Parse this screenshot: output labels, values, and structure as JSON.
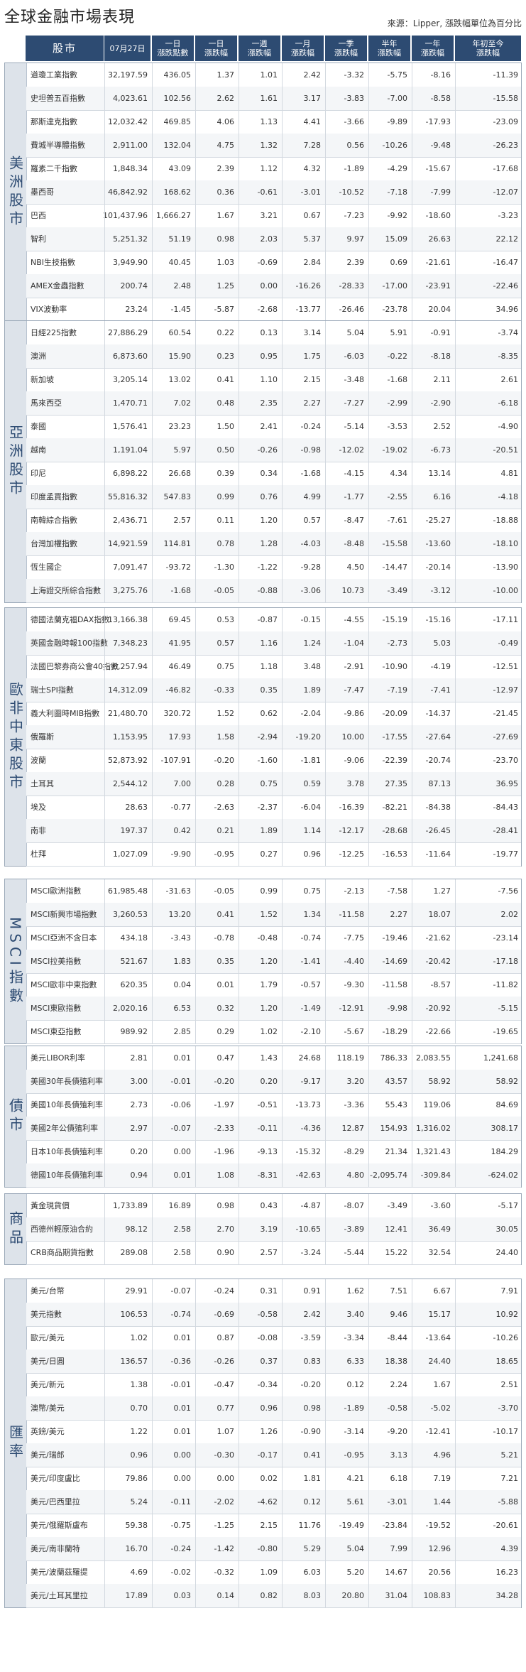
{
  "title": "全球金融市場表現",
  "source": "來源：Lipper, 漲跌幅單位為百分比",
  "header": {
    "name": "股市",
    "columns": [
      "07月27日",
      "一日\n漲跌點數",
      "一日\n漲跌幅",
      "一週\n漲跌幅",
      "一月\n漲跌幅",
      "一季\n漲跌幅",
      "半年\n漲跌幅",
      "一年\n漲跌幅",
      "年初至今\n漲跌幅"
    ]
  },
  "sections": [
    {
      "label": "美洲股市",
      "rows": [
        [
          "道瓊工業指數",
          "32,197.59",
          "436.05",
          "1.37",
          "1.01",
          "2.42",
          "-3.32",
          "-5.75",
          "-8.16",
          "-11.39"
        ],
        [
          "史坦普五百指數",
          "4,023.61",
          "102.56",
          "2.62",
          "1.61",
          "3.17",
          "-3.83",
          "-7.00",
          "-8.58",
          "-15.58"
        ],
        [
          "那斯達克指數",
          "12,032.42",
          "469.85",
          "4.06",
          "1.13",
          "4.41",
          "-3.66",
          "-9.89",
          "-17.93",
          "-23.09"
        ],
        [
          "費城半導體指數",
          "2,911.00",
          "132.04",
          "4.75",
          "1.32",
          "7.28",
          "0.56",
          "-10.26",
          "-9.48",
          "-26.23"
        ],
        [
          "羅素二千指數",
          "1,848.34",
          "43.09",
          "2.39",
          "1.12",
          "4.32",
          "-1.89",
          "-4.29",
          "-15.67",
          "-17.68"
        ],
        [
          "墨西哥",
          "46,842.92",
          "168.62",
          "0.36",
          "-0.61",
          "-3.01",
          "-10.52",
          "-7.18",
          "-7.99",
          "-12.07"
        ],
        [
          "巴西",
          "101,437.96",
          "1,666.27",
          "1.67",
          "3.21",
          "0.67",
          "-7.23",
          "-9.92",
          "-18.60",
          "-3.23"
        ],
        [
          "智利",
          "5,251.32",
          "51.19",
          "0.98",
          "2.03",
          "5.37",
          "9.97",
          "15.09",
          "26.63",
          "22.12"
        ],
        [
          "NBI生技指數",
          "3,949.90",
          "40.45",
          "1.03",
          "-0.69",
          "2.84",
          "2.39",
          "0.69",
          "-21.61",
          "-16.47"
        ],
        [
          "AMEX金蟲指數",
          "200.74",
          "2.48",
          "1.25",
          "0.00",
          "-16.26",
          "-28.33",
          "-17.00",
          "-23.91",
          "-22.46"
        ],
        [
          "VIX波動率",
          "23.24",
          "-1.45",
          "-5.87",
          "-2.68",
          "-13.77",
          "-26.46",
          "-23.78",
          "20.04",
          "34.96"
        ]
      ]
    },
    {
      "label": "亞洲股市",
      "rows": [
        [
          "日經225指數",
          "27,886.29",
          "60.54",
          "0.22",
          "0.13",
          "3.14",
          "5.04",
          "5.91",
          "-0.91",
          "-3.74"
        ],
        [
          "澳洲",
          "6,873.60",
          "15.90",
          "0.23",
          "0.95",
          "1.75",
          "-6.03",
          "-0.22",
          "-8.18",
          "-8.35"
        ],
        [
          "新加坡",
          "3,205.14",
          "13.02",
          "0.41",
          "1.10",
          "2.15",
          "-3.48",
          "-1.68",
          "2.11",
          "2.61"
        ],
        [
          "馬來西亞",
          "1,470.71",
          "7.02",
          "0.48",
          "2.35",
          "2.27",
          "-7.27",
          "-2.99",
          "-2.90",
          "-6.18"
        ],
        [
          "泰國",
          "1,576.41",
          "23.23",
          "1.50",
          "2.41",
          "-0.24",
          "-5.14",
          "-3.53",
          "2.52",
          "-4.90"
        ],
        [
          "越南",
          "1,191.04",
          "5.97",
          "0.50",
          "-0.26",
          "-0.98",
          "-12.02",
          "-19.02",
          "-6.73",
          "-20.51"
        ],
        [
          "印尼",
          "6,898.22",
          "26.68",
          "0.39",
          "0.34",
          "-1.68",
          "-4.15",
          "4.34",
          "13.14",
          "4.81"
        ],
        [
          "印度孟買指數",
          "55,816.32",
          "547.83",
          "0.99",
          "0.76",
          "4.99",
          "-1.77",
          "-2.55",
          "6.16",
          "-4.18"
        ],
        [
          "南韓綜合指數",
          "2,436.71",
          "2.57",
          "0.11",
          "1.20",
          "0.57",
          "-8.47",
          "-7.61",
          "-25.27",
          "-18.88"
        ],
        [
          "台灣加權指數",
          "14,921.59",
          "114.81",
          "0.78",
          "1.28",
          "-4.03",
          "-8.48",
          "-15.58",
          "-13.60",
          "-18.10"
        ],
        [
          "恆生國企",
          "7,091.47",
          "-93.72",
          "-1.30",
          "-1.22",
          "-9.28",
          "4.50",
          "-14.47",
          "-20.14",
          "-13.90"
        ],
        [
          "上海證交所綜合指數",
          "3,275.76",
          "-1.68",
          "-0.05",
          "-0.88",
          "-3.06",
          "10.73",
          "-3.49",
          "-3.12",
          "-10.00"
        ]
      ]
    },
    {
      "label": "歐非中東股市",
      "rows": [
        [
          "德國法蘭克福DAX指數",
          "13,166.38",
          "69.45",
          "0.53",
          "-0.87",
          "-0.15",
          "-4.55",
          "-15.19",
          "-15.16",
          "-17.11"
        ],
        [
          "英國金融時報100指數",
          "7,348.23",
          "41.95",
          "0.57",
          "1.16",
          "1.24",
          "-1.04",
          "-2.73",
          "5.03",
          "-0.49"
        ],
        [
          "法國巴黎券商公會40指數",
          "6,257.94",
          "46.49",
          "0.75",
          "1.18",
          "3.48",
          "-2.91",
          "-10.90",
          "-4.19",
          "-12.51"
        ],
        [
          "瑞士SPI指數",
          "14,312.09",
          "-46.82",
          "-0.33",
          "0.35",
          "1.89",
          "-7.47",
          "-7.19",
          "-7.41",
          "-12.97"
        ],
        [
          "義大利圖時MIB指數",
          "21,480.70",
          "320.72",
          "1.52",
          "0.62",
          "-2.04",
          "-9.86",
          "-20.09",
          "-14.37",
          "-21.45"
        ],
        [
          "俄羅斯",
          "1,153.95",
          "17.93",
          "1.58",
          "-2.94",
          "-19.20",
          "10.00",
          "-17.55",
          "-27.64",
          "-27.69"
        ],
        [
          "波蘭",
          "52,873.92",
          "-107.91",
          "-0.20",
          "-1.60",
          "-1.81",
          "-9.06",
          "-22.39",
          "-20.74",
          "-23.70"
        ],
        [
          "土耳其",
          "2,544.12",
          "7.00",
          "0.28",
          "0.75",
          "0.59",
          "3.78",
          "27.35",
          "87.13",
          "36.95"
        ],
        [
          "埃及",
          "28.63",
          "-0.77",
          "-2.63",
          "-2.37",
          "-6.04",
          "-16.39",
          "-82.21",
          "-84.38",
          "-84.43"
        ],
        [
          "南非",
          "197.37",
          "0.42",
          "0.21",
          "1.89",
          "1.14",
          "-12.17",
          "-28.68",
          "-26.45",
          "-28.41"
        ],
        [
          "杜拜",
          "1,027.09",
          "-9.90",
          "-0.95",
          "0.27",
          "0.96",
          "-12.25",
          "-16.53",
          "-11.64",
          "-19.77"
        ]
      ]
    },
    {
      "label": "MSCI指數",
      "rows": [
        [
          "MSCI歐洲指數",
          "61,985.48",
          "-31.63",
          "-0.05",
          "0.99",
          "0.75",
          "-2.13",
          "-7.58",
          "1.27",
          "-7.56"
        ],
        [
          "MSCI新興市場指數",
          "3,260.53",
          "13.20",
          "0.41",
          "1.52",
          "1.34",
          "-11.58",
          "2.27",
          "18.07",
          "2.02"
        ],
        [
          "MSCI亞洲不含日本",
          "434.18",
          "-3.43",
          "-0.78",
          "-0.48",
          "-0.74",
          "-7.75",
          "-19.46",
          "-21.62",
          "-23.14"
        ],
        [
          "MSCI拉美指數",
          "521.67",
          "1.83",
          "0.35",
          "1.20",
          "-1.41",
          "-4.40",
          "-14.69",
          "-20.42",
          "-17.18"
        ],
        [
          "MSCI歐非中東指數",
          "620.35",
          "0.04",
          "0.01",
          "1.79",
          "-0.57",
          "-9.30",
          "-11.58",
          "-8.57",
          "-11.82"
        ],
        [
          "MSCI東歐指數",
          "2,020.16",
          "6.53",
          "0.32",
          "1.20",
          "-1.49",
          "-12.91",
          "-9.98",
          "-20.92",
          "-5.15"
        ],
        [
          "MSCI東亞指數",
          "989.92",
          "2.85",
          "0.29",
          "1.02",
          "-2.10",
          "-5.67",
          "-18.29",
          "-22.66",
          "-19.65"
        ]
      ]
    },
    {
      "label": "債市",
      "rows": [
        [
          "美元LIBOR利率",
          "2.81",
          "0.01",
          "0.47",
          "1.43",
          "24.68",
          "118.19",
          "786.33",
          "2,083.55",
          "1,241.68"
        ],
        [
          "美國30年長債殖利率",
          "3.00",
          "-0.01",
          "-0.20",
          "0.20",
          "-9.17",
          "3.20",
          "43.57",
          "58.92",
          "58.92"
        ],
        [
          "美國10年長債殖利率",
          "2.73",
          "-0.06",
          "-1.97",
          "-0.51",
          "-13.73",
          "-3.36",
          "55.43",
          "119.06",
          "84.69"
        ],
        [
          "美國2年公債殖利率",
          "2.97",
          "-0.07",
          "-2.33",
          "-0.11",
          "-4.36",
          "12.87",
          "154.93",
          "1,316.02",
          "308.17"
        ],
        [
          "日本10年長債殖利率",
          "0.20",
          "0.00",
          "-1.96",
          "-9.13",
          "-15.32",
          "-8.29",
          "21.34",
          "1,321.43",
          "184.29"
        ],
        [
          "德國10年長債殖利率",
          "0.94",
          "0.01",
          "1.08",
          "-8.31",
          "-42.63",
          "4.80",
          "-2,095.74",
          "-309.84",
          "-624.02"
        ]
      ]
    },
    {
      "label": "商品",
      "rows": [
        [
          "黃金現貨價",
          "1,733.89",
          "16.89",
          "0.98",
          "0.43",
          "-4.87",
          "-8.07",
          "-3.49",
          "-3.60",
          "-5.17"
        ],
        [
          "西德州輕原油合約",
          "98.12",
          "2.58",
          "2.70",
          "3.19",
          "-10.65",
          "-3.89",
          "12.41",
          "36.49",
          "30.05"
        ],
        [
          "CRB商品期貨指數",
          "289.08",
          "2.58",
          "0.90",
          "2.57",
          "-3.24",
          "-5.44",
          "15.22",
          "32.54",
          "24.40"
        ]
      ]
    },
    {
      "label": "匯率",
      "rows": [
        [
          "美元/台幣",
          "29.91",
          "-0.07",
          "-0.24",
          "0.31",
          "0.91",
          "1.62",
          "7.51",
          "6.67",
          "7.91"
        ],
        [
          "美元指數",
          "106.53",
          "-0.74",
          "-0.69",
          "-0.58",
          "2.42",
          "3.40",
          "9.46",
          "15.17",
          "10.92"
        ],
        [
          "歐元/美元",
          "1.02",
          "0.01",
          "0.87",
          "-0.08",
          "-3.59",
          "-3.34",
          "-8.44",
          "-13.64",
          "-10.26"
        ],
        [
          "美元/日圓",
          "136.57",
          "-0.36",
          "-0.26",
          "0.37",
          "0.83",
          "6.33",
          "18.38",
          "24.40",
          "18.65"
        ],
        [
          "美元/新元",
          "1.38",
          "-0.01",
          "-0.47",
          "-0.34",
          "-0.20",
          "0.12",
          "2.24",
          "1.67",
          "2.51"
        ],
        [
          "澳幣/美元",
          "0.70",
          "0.01",
          "0.77",
          "0.96",
          "0.98",
          "-1.89",
          "-0.58",
          "-5.02",
          "-3.70"
        ],
        [
          "英鎊/美元",
          "1.22",
          "0.01",
          "1.07",
          "1.26",
          "-0.90",
          "-3.14",
          "-9.20",
          "-12.41",
          "-10.17"
        ],
        [
          "美元/瑞郎",
          "0.96",
          "0.00",
          "-0.30",
          "-0.17",
          "0.41",
          "-0.95",
          "3.13",
          "4.96",
          "5.21"
        ],
        [
          "美元/印度盧比",
          "79.86",
          "0.00",
          "0.00",
          "0.02",
          "1.81",
          "4.21",
          "6.18",
          "7.19",
          "7.21"
        ],
        [
          "美元/巴西里拉",
          "5.24",
          "-0.11",
          "-2.02",
          "-4.62",
          "0.12",
          "5.61",
          "-3.01",
          "1.44",
          "-5.88"
        ],
        [
          "美元/俄羅斯盧布",
          "59.38",
          "-0.75",
          "-1.25",
          "2.15",
          "11.76",
          "-19.49",
          "-23.84",
          "-19.52",
          "-20.61"
        ],
        [
          "美元/南非蘭特",
          "16.70",
          "-0.24",
          "-1.42",
          "-0.80",
          "5.29",
          "5.04",
          "7.99",
          "12.96",
          "4.39"
        ],
        [
          "美元/波蘭茲羅提",
          "4.69",
          "-0.02",
          "-0.32",
          "1.09",
          "6.03",
          "5.20",
          "14.67",
          "20.56",
          "16.23"
        ],
        [
          "美元/土耳其里拉",
          "17.89",
          "0.03",
          "0.14",
          "0.82",
          "8.03",
          "20.80",
          "31.04",
          "108.83",
          "34.28"
        ]
      ]
    }
  ]
}
